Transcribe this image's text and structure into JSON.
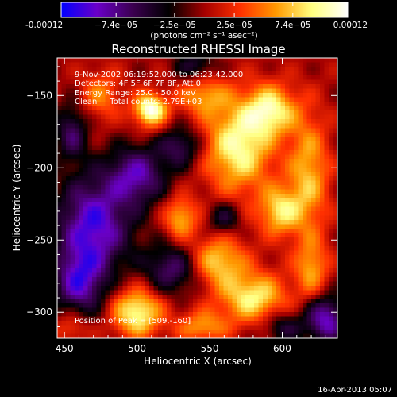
{
  "chart_data": {
    "type": "heatmap",
    "title": "Reconstructed RHESSI Image",
    "xlabel": "Heliocentric X (arcsec)",
    "ylabel": "Heliocentric Y (arcsec)",
    "xlim": [
      445,
      638
    ],
    "ylim": [
      -318,
      -124
    ],
    "xticks": [
      "450",
      "500",
      "550",
      "600"
    ],
    "xtick_values": [
      450,
      500,
      550,
      600
    ],
    "yticks": [
      "-150",
      "-200",
      "-250",
      "-300"
    ],
    "ytick_values": [
      -150,
      -200,
      -250,
      -300
    ],
    "colorbar": {
      "range": [
        -0.00012,
        0.00012
      ],
      "ticks": [
        "-0.00012",
        "−7.4e−05",
        "−2.5e−05",
        "2.5e−05",
        "7.4e−05",
        "0.00012"
      ],
      "tick_values": [
        -0.00012,
        -7.4e-05,
        -2.5e-05,
        2.5e-05,
        7.4e-05,
        0.00012
      ],
      "units": "(photons cm⁻² s⁻¹ asec⁻²)",
      "colormap": [
        "#0000ff",
        "#6a00c8",
        "#3b0050",
        "#000000",
        "#a40000",
        "#ff3000",
        "#ff9900",
        "#ffff80",
        "#ffffff"
      ]
    },
    "annotations": {
      "time_range": "9-Nov-2002 06:19:52.000 to 06:23:42.000",
      "detectors": "Detectors: 4F 5F 6F 7F 8F, Att 0",
      "energy": "Energy Range: 25.0 - 50.0 keV",
      "clean": "Clean     Total counts: 2.79E+03",
      "peak": "Position of Peak = [509,-160]"
    },
    "blobs": [
      {
        "x": 509,
        "y": -160,
        "value": 0.00012,
        "sx": 8,
        "sy": 8
      },
      {
        "x": 570,
        "y": -185,
        "value": 0.0001,
        "sx": 16,
        "sy": 22
      },
      {
        "x": 592,
        "y": -160,
        "value": 9e-05,
        "sx": 12,
        "sy": 12
      },
      {
        "x": 598,
        "y": -230,
        "value": 8e-05,
        "sx": 10,
        "sy": 12
      },
      {
        "x": 618,
        "y": -205,
        "value": 7e-05,
        "sx": 10,
        "sy": 30
      },
      {
        "x": 500,
        "y": -300,
        "value": 0.0001,
        "sx": 12,
        "sy": 12
      },
      {
        "x": 555,
        "y": -265,
        "value": 8e-05,
        "sx": 14,
        "sy": 12
      },
      {
        "x": 580,
        "y": -290,
        "value": 9e-05,
        "sx": 16,
        "sy": 12
      },
      {
        "x": 545,
        "y": -310,
        "value": 6e-05,
        "sx": 12,
        "sy": 8
      },
      {
        "x": 620,
        "y": -270,
        "value": 6e-05,
        "sx": 8,
        "sy": 14
      },
      {
        "x": 475,
        "y": -150,
        "value": 5e-05,
        "sx": 10,
        "sy": 12
      },
      {
        "x": 545,
        "y": -150,
        "value": 6e-05,
        "sx": 12,
        "sy": 10
      },
      {
        "x": 530,
        "y": -235,
        "value": 7e-05,
        "sx": 8,
        "sy": 10
      },
      {
        "x": 455,
        "y": -310,
        "value": 4e-05,
        "sx": 8,
        "sy": 8
      },
      {
        "x": 470,
        "y": -240,
        "value": -0.0001,
        "sx": 18,
        "sy": 24
      },
      {
        "x": 500,
        "y": -205,
        "value": -8e-05,
        "sx": 14,
        "sy": 14
      },
      {
        "x": 530,
        "y": -185,
        "value": -6e-05,
        "sx": 10,
        "sy": 10
      },
      {
        "x": 525,
        "y": -270,
        "value": -7e-05,
        "sx": 14,
        "sy": 12
      },
      {
        "x": 630,
        "y": -305,
        "value": -9e-05,
        "sx": 10,
        "sy": 12
      },
      {
        "x": 460,
        "y": -280,
        "value": -8e-05,
        "sx": 12,
        "sy": 16
      },
      {
        "x": 540,
        "y": -130,
        "value": -5e-05,
        "sx": 10,
        "sy": 8
      },
      {
        "x": 600,
        "y": -310,
        "value": -5e-05,
        "sx": 10,
        "sy": 8
      },
      {
        "x": 560,
        "y": -235,
        "value": -5e-05,
        "sx": 8,
        "sy": 8
      },
      {
        "x": 455,
        "y": -175,
        "value": -6e-05,
        "sx": 8,
        "sy": 14
      }
    ]
  },
  "footer": {
    "timestamp": "16-Apr-2013 05:07"
  }
}
